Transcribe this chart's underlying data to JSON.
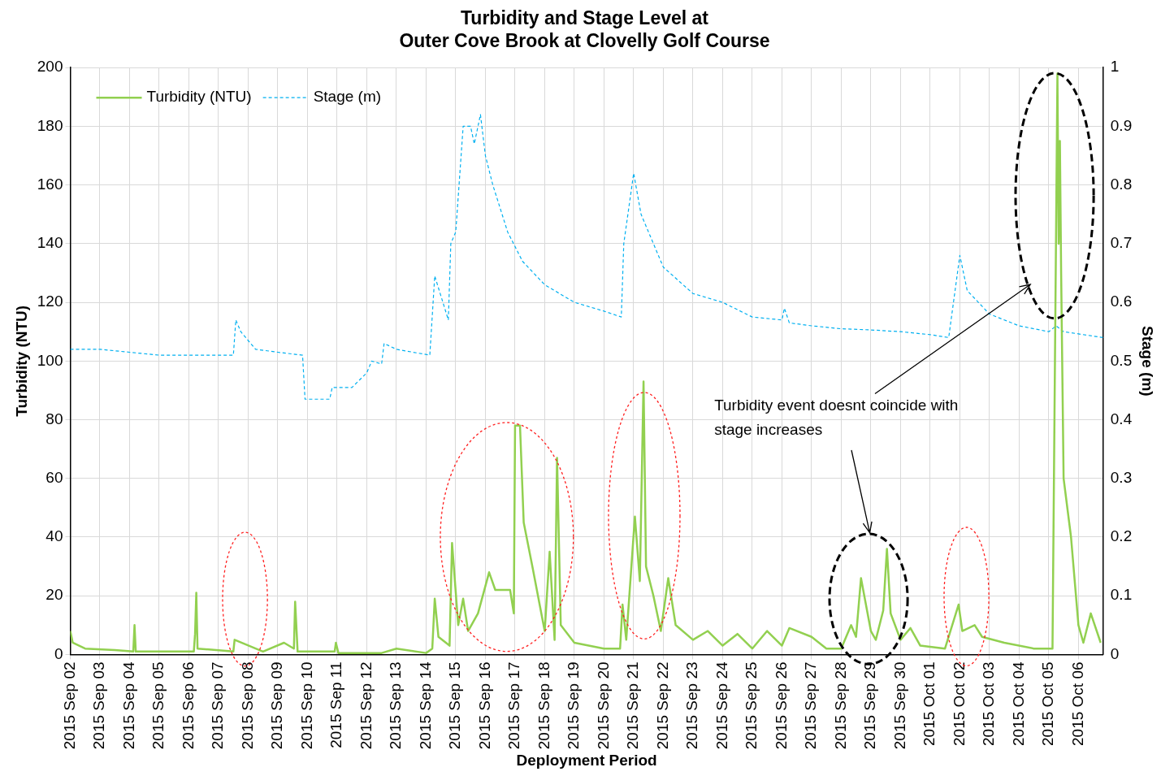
{
  "chart_data": {
    "type": "line",
    "title": "Turbidity and Stage Level at\nOuter Cove Brook at Clovelly Golf Course",
    "xlabel": "Deployment Period",
    "ylabel": "Turbidity (NTU)",
    "y2label": "Stage (m)",
    "annotations": [
      "Turbidity event doesnt coincide with stage increases"
    ],
    "xlim": [
      "2015-09-02T00:00",
      "2015-10-06T20:00"
    ],
    "xticks": [
      {
        "value": "2015-09-02",
        "label": "2015 Sep 02"
      },
      {
        "value": "2015-09-03",
        "label": "2015 Sep 03"
      },
      {
        "value": "2015-09-04",
        "label": "2015 Sep 04"
      },
      {
        "value": "2015-09-05",
        "label": "2015 Sep 05"
      },
      {
        "value": "2015-09-06",
        "label": "2015 Sep 06"
      },
      {
        "value": "2015-09-07",
        "label": "2015 Sep 07"
      },
      {
        "value": "2015-09-08",
        "label": "2015 Sep 08"
      },
      {
        "value": "2015-09-09",
        "label": "2015 Sep 09"
      },
      {
        "value": "2015-09-10",
        "label": "2015 Sep 10"
      },
      {
        "value": "2015-09-11",
        "label": "2015 Sep 11"
      },
      {
        "value": "2015-09-12",
        "label": "2015 Sep 12"
      },
      {
        "value": "2015-09-13",
        "label": "2015 Sep 13"
      },
      {
        "value": "2015-09-14",
        "label": "2015 Sep 14"
      },
      {
        "value": "2015-09-15",
        "label": "2015 Sep 15"
      },
      {
        "value": "2015-09-16",
        "label": "2015 Sep 16"
      },
      {
        "value": "2015-09-17",
        "label": "2015 Sep 17"
      },
      {
        "value": "2015-09-18",
        "label": "2015 Sep 18"
      },
      {
        "value": "2015-09-19",
        "label": "2015 Sep 19"
      },
      {
        "value": "2015-09-20",
        "label": "2015 Sep 20"
      },
      {
        "value": "2015-09-21",
        "label": "2015 Sep 21"
      },
      {
        "value": "2015-09-22",
        "label": "2015 Sep 22"
      },
      {
        "value": "2015-09-23",
        "label": "2015 Sep 23"
      },
      {
        "value": "2015-09-24",
        "label": "2015 Sep 24"
      },
      {
        "value": "2015-09-25",
        "label": "2015 Sep 25"
      },
      {
        "value": "2015-09-26",
        "label": "2015 Sep 26"
      },
      {
        "value": "2015-09-27",
        "label": "2015 Sep 27"
      },
      {
        "value": "2015-09-28",
        "label": "2015 Sep 28"
      },
      {
        "value": "2015-09-29",
        "label": "2015 Sep 29"
      },
      {
        "value": "2015-09-30",
        "label": "2015 Sep 30"
      },
      {
        "value": "2015-10-01",
        "label": "2015 Oct 01"
      },
      {
        "value": "2015-10-02",
        "label": "2015 Oct 02"
      },
      {
        "value": "2015-10-03",
        "label": "2015 Oct 03"
      },
      {
        "value": "2015-10-04",
        "label": "2015 Oct 04"
      },
      {
        "value": "2015-10-05",
        "label": "2015 Oct 05"
      },
      {
        "value": "2015-10-06",
        "label": "2015 Oct 06"
      }
    ],
    "ylim": [
      0,
      200
    ],
    "yticks": [
      0,
      20,
      40,
      60,
      80,
      100,
      120,
      140,
      160,
      180,
      200
    ],
    "y2lim": [
      0,
      1
    ],
    "y2ticks": [
      0,
      0.1,
      0.2,
      0.3,
      0.4,
      0.5,
      0.6,
      0.7,
      0.8,
      0.9,
      1
    ],
    "grid": true,
    "legend": "top left",
    "marker": "none",
    "series": [
      {
        "name": "Turbidity (NTU)",
        "color": "#92d050",
        "line_style": "solid",
        "x": [
          "2015-09-02T00:00",
          "2015-09-02T02:00",
          "2015-09-02T12:00",
          "2015-09-03T12:00",
          "2015-09-04T03:00",
          "2015-09-04T04:00",
          "2015-09-04T05:00",
          "2015-09-05T12:00",
          "2015-09-06T04:00",
          "2015-09-06T05:00",
          "2015-09-06T06:00",
          "2015-09-06T07:00",
          "2015-09-07T12:00",
          "2015-09-07T13:00",
          "2015-09-08T12:00",
          "2015-09-09T05:00",
          "2015-09-09T13:00",
          "2015-09-09T14:00",
          "2015-09-09T16:00",
          "2015-09-10T22:00",
          "2015-09-10T23:00",
          "2015-09-11T01:00",
          "2015-09-12T12:00",
          "2015-09-13T00:00",
          "2015-09-14T00:00",
          "2015-09-14T05:00",
          "2015-09-14T07:00",
          "2015-09-14T10:00",
          "2015-09-14T19:00",
          "2015-09-14T21:00",
          "2015-09-15T02:00",
          "2015-09-15T06:00",
          "2015-09-15T10:00",
          "2015-09-15T18:00",
          "2015-09-16T03:00",
          "2015-09-16T08:00",
          "2015-09-16T20:00",
          "2015-09-16T23:00",
          "2015-09-17T00:00",
          "2015-09-17T04:00",
          "2015-09-17T07:00",
          "2015-09-17T14:00",
          "2015-09-18T00:00",
          "2015-09-18T04:00",
          "2015-09-18T08:00",
          "2015-09-18T10:00",
          "2015-09-18T13:00",
          "2015-09-19T00:00",
          "2015-09-20T00:00",
          "2015-09-20T13:00",
          "2015-09-20T15:00",
          "2015-09-20T18:00",
          "2015-09-21T01:00",
          "2015-09-21T05:00",
          "2015-09-21T08:00",
          "2015-09-21T10:00",
          "2015-09-21T16:00",
          "2015-09-21T22:00",
          "2015-09-22T04:00",
          "2015-09-22T10:00",
          "2015-09-23T00:00",
          "2015-09-23T12:00",
          "2015-09-24T00:00",
          "2015-09-24T12:00",
          "2015-09-25T00:00",
          "2015-09-25T12:00",
          "2015-09-26T00:00",
          "2015-09-26T06:00",
          "2015-09-27T00:00",
          "2015-09-27T12:00",
          "2015-09-28T00:00",
          "2015-09-28T08:00",
          "2015-09-28T12:00",
          "2015-09-28T16:00",
          "2015-09-29T00:00",
          "2015-09-29T04:00",
          "2015-09-29T10:00",
          "2015-09-29T13:00",
          "2015-09-29T16:00",
          "2015-09-30T00:00",
          "2015-09-30T08:00",
          "2015-09-30T16:00",
          "2015-10-01T12:00",
          "2015-10-01T23:00",
          "2015-10-02T02:00",
          "2015-10-02T12:00",
          "2015-10-02T18:00",
          "2015-10-03T12:00",
          "2015-10-04T12:00",
          "2015-10-05T03:00",
          "2015-10-05T05:00",
          "2015-10-05T07:00",
          "2015-10-05T08:00",
          "2015-10-05T09:00",
          "2015-10-05T10:00",
          "2015-10-05T12:00",
          "2015-10-05T18:00",
          "2015-10-06T00:00",
          "2015-10-06T04:00",
          "2015-10-06T10:00",
          "2015-10-06T18:00"
        ],
        "values": [
          8,
          4,
          2,
          1.5,
          1,
          10,
          1,
          1,
          1,
          7,
          21,
          2,
          1,
          5,
          1,
          4,
          2,
          18,
          1,
          1,
          4,
          0.5,
          0.5,
          2,
          0.5,
          2,
          19,
          6,
          3,
          38,
          10,
          19,
          8,
          14,
          28,
          22,
          22,
          14,
          78,
          78,
          45,
          30,
          8,
          35,
          5,
          67,
          10,
          4,
          2,
          2,
          17,
          5,
          47,
          25,
          93,
          30,
          20,
          8,
          26,
          10,
          5,
          8,
          3,
          7,
          2,
          8,
          3,
          9,
          6,
          2,
          2,
          10,
          6,
          26,
          8,
          5,
          15,
          36,
          14,
          5,
          9,
          3,
          2,
          17,
          8,
          10,
          6,
          4,
          2,
          2,
          100,
          198,
          140,
          175,
          130,
          60,
          40,
          10,
          4,
          14,
          4
        ]
      },
      {
        "name": "Stage (m)",
        "color": "#00b0f0",
        "line_style": "dashed",
        "axis": "y2",
        "x": [
          "2015-09-02T00:00",
          "2015-09-03T00:00",
          "2015-09-04T00:00",
          "2015-09-05T00:00",
          "2015-09-06T00:00",
          "2015-09-07T12:00",
          "2015-09-07T14:00",
          "2015-09-07T18:00",
          "2015-09-08T06:00",
          "2015-09-09T00:00",
          "2015-09-09T20:00",
          "2015-09-09T22:00",
          "2015-09-10T18:00",
          "2015-09-10T20:00",
          "2015-09-11T12:00",
          "2015-09-12T00:00",
          "2015-09-12T04:00",
          "2015-09-12T12:00",
          "2015-09-12T14:00",
          "2015-09-13T00:00",
          "2015-09-14T03:00",
          "2015-09-14T07:00",
          "2015-09-14T18:00",
          "2015-09-14T20:00",
          "2015-09-15T00:00",
          "2015-09-15T06:00",
          "2015-09-15T12:00",
          "2015-09-15T15:00",
          "2015-09-15T20:00",
          "2015-09-16T00:00",
          "2015-09-16T06:00",
          "2015-09-16T12:00",
          "2015-09-16T18:00",
          "2015-09-17T06:00",
          "2015-09-18T00:00",
          "2015-09-19T00:00",
          "2015-09-20T00:00",
          "2015-09-20T14:00",
          "2015-09-20T16:00",
          "2015-09-21T00:00",
          "2015-09-21T06:00",
          "2015-09-22T00:00",
          "2015-09-23T00:00",
          "2015-09-24T00:00",
          "2015-09-25T00:00",
          "2015-09-26T00:00",
          "2015-09-26T02:00",
          "2015-09-26T06:00",
          "2015-09-27T00:00",
          "2015-09-28T00:00",
          "2015-09-29T00:00",
          "2015-09-30T00:00",
          "2015-10-01T00:00",
          "2015-10-01T15:00",
          "2015-10-02T00:00",
          "2015-10-02T06:00",
          "2015-10-03T00:00",
          "2015-10-04T00:00",
          "2015-10-05T00:00",
          "2015-10-05T06:00",
          "2015-10-05T12:00",
          "2015-10-06T20:00"
        ],
        "values": [
          0.52,
          0.52,
          0.515,
          0.51,
          0.51,
          0.51,
          0.57,
          0.55,
          0.52,
          0.515,
          0.51,
          0.435,
          0.435,
          0.455,
          0.455,
          0.48,
          0.5,
          0.495,
          0.53,
          0.52,
          0.51,
          0.645,
          0.57,
          0.7,
          0.72,
          0.9,
          0.9,
          0.87,
          0.92,
          0.85,
          0.8,
          0.76,
          0.72,
          0.67,
          0.63,
          0.6,
          0.585,
          0.575,
          0.7,
          0.82,
          0.75,
          0.66,
          0.615,
          0.6,
          0.575,
          0.57,
          0.59,
          0.565,
          0.56,
          0.555,
          0.553,
          0.55,
          0.545,
          0.54,
          0.68,
          0.62,
          0.58,
          0.56,
          0.55,
          0.56,
          0.55,
          0.54
        ]
      }
    ]
  }
}
